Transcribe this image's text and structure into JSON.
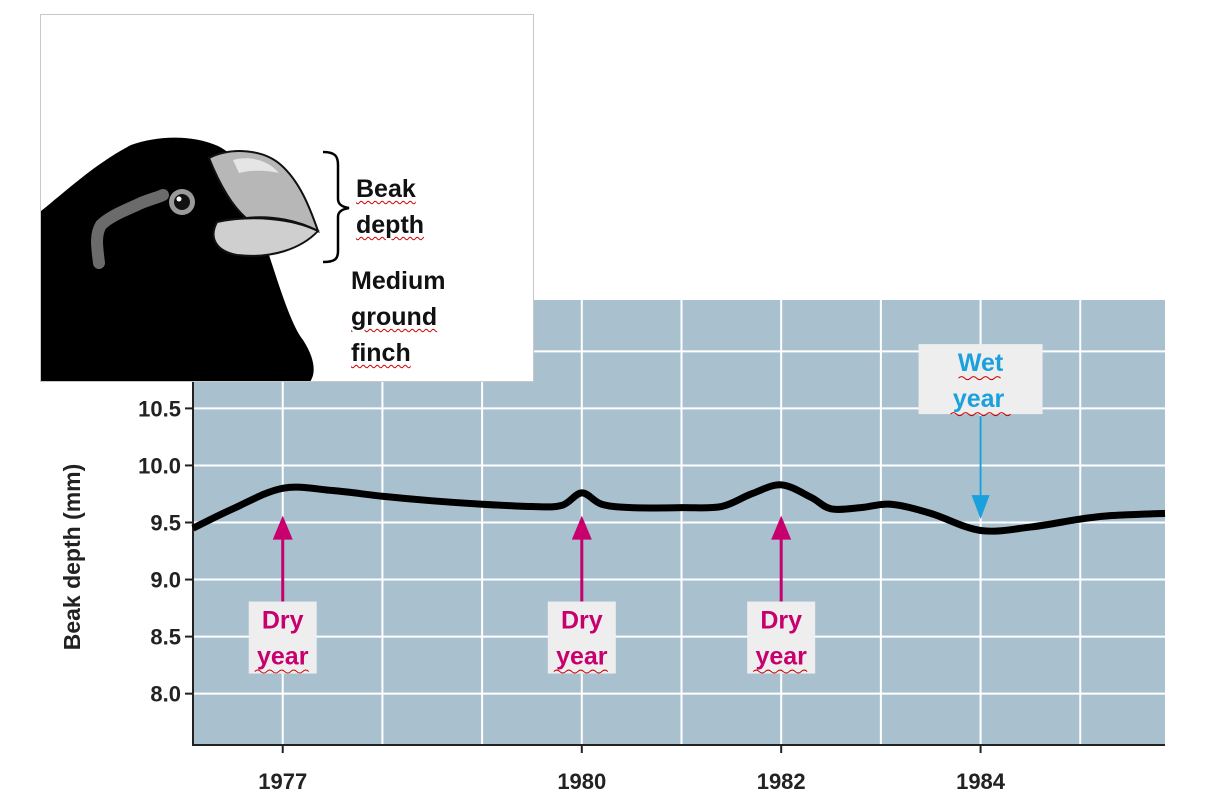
{
  "chart_data": {
    "type": "line",
    "ylabel": "Beak depth (mm)",
    "xlabel": "",
    "x_ticks": [
      "1977",
      "1980",
      "1982",
      "1984"
    ],
    "y_ticks": [
      "10.5",
      "10.0",
      "9.5",
      "9.0",
      "8.5",
      "8.0"
    ],
    "ylim": [
      7.55,
      11.45
    ],
    "xlim": [
      1976.1,
      1985.85
    ],
    "grid": true,
    "background_color": "#a9c0cf",
    "series": [
      {
        "x": [
          1976.1,
          1976.5,
          1977.0,
          1977.5,
          1978.0,
          1978.5,
          1979.0,
          1979.5,
          1979.8,
          1980.0,
          1980.2,
          1980.5,
          1981.0,
          1981.4,
          1981.7,
          1982.0,
          1982.3,
          1982.5,
          1982.8,
          1983.1,
          1983.5,
          1984.0,
          1984.5,
          1985.0,
          1985.3,
          1985.85
        ],
        "y": [
          9.45,
          9.62,
          9.8,
          9.78,
          9.73,
          9.69,
          9.66,
          9.64,
          9.65,
          9.76,
          9.66,
          9.63,
          9.63,
          9.64,
          9.75,
          9.83,
          9.72,
          9.62,
          9.63,
          9.66,
          9.58,
          9.43,
          9.46,
          9.53,
          9.56,
          9.58
        ]
      }
    ],
    "annotations": [
      {
        "line1": "Dry",
        "line2": "year",
        "x": 1977,
        "arrow_tip_y": 9.56,
        "arrow_tail_y": 9.0,
        "color": "#c8006e",
        "direction": "up"
      },
      {
        "line1": "Dry",
        "line2": "year",
        "x": 1980,
        "arrow_tip_y": 9.56,
        "arrow_tail_y": 9.0,
        "color": "#c8006e",
        "direction": "up"
      },
      {
        "line1": "Dry",
        "line2": "year",
        "x": 1982,
        "arrow_tip_y": 9.56,
        "arrow_tail_y": 9.0,
        "color": "#c8006e",
        "direction": "up"
      },
      {
        "line1": "Wet",
        "line2": "year",
        "x": 1984,
        "arrow_tip_y": 9.53,
        "arrow_tail_y": 10.45,
        "color": "#1aa0dc",
        "direction": "down"
      }
    ]
  },
  "inset": {
    "bracket_label_line1": "Beak",
    "bracket_label_line2": "depth",
    "caption_line1": "Medium",
    "caption_line2": "ground",
    "caption_line3": "finch"
  }
}
